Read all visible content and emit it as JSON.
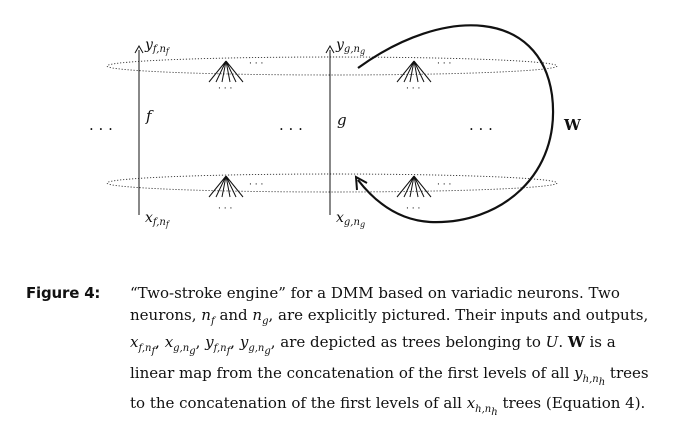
{
  "diagram": {
    "neuron_f": {
      "label": "f",
      "output": "y",
      "output_sub": "f,n",
      "output_subsub": "f",
      "input": "x",
      "input_sub": "f,n",
      "input_subsub": "f"
    },
    "neuron_g": {
      "label": "g",
      "output": "y",
      "output_sub": "g,n",
      "output_subsub": "g",
      "input": "x",
      "input_sub": "g,n",
      "input_subsub": "g"
    },
    "ellipsis": "· · ·",
    "ellipsis_small": "· · ·",
    "map_label": "W"
  },
  "caption": {
    "label": "Figure 4:",
    "text_1": "“Two-stroke engine” for a DMM based on variadic neurons. Two neurons, ",
    "nf": "n",
    "nf_sub": "f",
    "text_2": " and ",
    "ng": "n",
    "ng_sub": "g",
    "text_3": ", are explicitly pictured. Their inputs and outputs, ",
    "list": "x",
    "list_1_sub": "f,n",
    "list_1_subsub": "f",
    "list_2_sub": "g,n",
    "list_2_subsub": "g",
    "list_y": "y",
    "text_4": ", are depicted as trees belonging to ",
    "U": "U",
    "text_5": ". ",
    "W": "W",
    "text_6": " is a linear map from the concatenation of the first levels of all ",
    "yh": "y",
    "yh_sub": "h,n",
    "yh_subsub": "h",
    "text_7": " trees to the concatenation of the first levels of all ",
    "xh": "x",
    "xh_sub": "h,n",
    "xh_subsub": "h",
    "text_8": " trees (Equation 4)."
  }
}
